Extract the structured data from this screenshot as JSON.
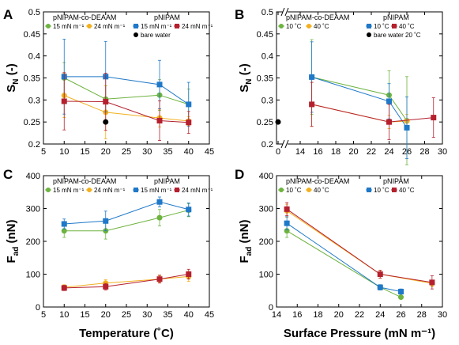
{
  "colors": {
    "co_15": "#6db33f",
    "co_24": "#f2b01e",
    "p_15": "#1f78c8",
    "p_24": "#b5202e",
    "bare": "#000000",
    "line": "#000000"
  },
  "chart_data": [
    {
      "panel": "A",
      "type": "line",
      "ylabel_main": "S",
      "ylabel_sub": "N",
      "ylabel_tail": " (-)",
      "xlim": [
        5,
        45
      ],
      "ylim": [
        0.2,
        0.5
      ],
      "xticks": [
        "5",
        "10",
        "15",
        "20",
        "25",
        "30",
        "35",
        "40",
        "45"
      ],
      "yticks": [
        "0.2",
        "0.25",
        "0.3",
        "0.35",
        "0.4",
        "0.45",
        "0.5"
      ],
      "legend": {
        "group_titles": [
          "pNIPAM-co-DEAAM",
          "pNIPAM"
        ],
        "entries": [
          "15 mN m⁻¹",
          "24 mN m⁻¹",
          "15 mN m⁻¹",
          "24 mN m⁻¹"
        ],
        "bare": "bare water"
      },
      "series": [
        {
          "key": "co_15",
          "marker": "circle",
          "x": [
            10,
            20,
            33,
            40
          ],
          "y": [
            0.35,
            0.302,
            0.311,
            0.29
          ],
          "err": [
            0.035,
            0.03,
            0.035,
            0.035
          ]
        },
        {
          "key": "co_24",
          "marker": "circle",
          "x": [
            10,
            20,
            33,
            40
          ],
          "y": [
            0.31,
            0.272,
            0.259,
            0.252
          ],
          "err": [
            0.05,
            0.06,
            0.02,
            0.01
          ]
        },
        {
          "key": "p_15",
          "marker": "square",
          "x": [
            10,
            20,
            33,
            40
          ],
          "y": [
            0.353,
            0.353,
            0.335,
            0.29
          ],
          "err": [
            0.085,
            0.08,
            0.055,
            0.05
          ]
        },
        {
          "key": "p_24",
          "marker": "square",
          "x": [
            10,
            20,
            33,
            40
          ],
          "y": [
            0.297,
            0.296,
            0.253,
            0.249
          ],
          "err": [
            0.065,
            0.065,
            0.045,
            0.025
          ]
        },
        {
          "key": "bare",
          "marker": "circle",
          "x": [
            20
          ],
          "y": [
            0.25
          ],
          "err": [
            0
          ],
          "noline": true
        }
      ]
    },
    {
      "panel": "B",
      "type": "line",
      "ylabel_main": "S",
      "ylabel_sub": "N",
      "ylabel_tail": " (-)",
      "xlim": [
        0,
        30
      ],
      "ylim": [
        0.2,
        0.5
      ],
      "axis_break": true,
      "xticks_at": [
        0,
        14,
        16,
        18,
        20,
        22,
        24,
        26,
        28,
        30
      ],
      "xticks": [
        "0",
        "14",
        "16",
        "18",
        "20",
        "22",
        "24",
        "26",
        "28",
        "30"
      ],
      "yticks": [
        "0.2",
        "0.25",
        "0.3",
        "0.35",
        "0.4",
        "0.45",
        "0.5"
      ],
      "legend": {
        "group_titles": [
          "pNIPAM-co-DEAAM",
          "pNIPAM"
        ],
        "entries": [
          "10 ˚C",
          "40 ˚C",
          "10 ˚C",
          "40 ˚C"
        ],
        "bare": "bare water 20 ˚C"
      },
      "series": [
        {
          "key": "co_15",
          "marker": "circle",
          "x": [
            15.3,
            24,
            26
          ],
          "y": [
            0.352,
            0.311,
            0.253
          ],
          "err": [
            0.085,
            0.055,
            0.1
          ]
        },
        {
          "key": "co_24",
          "marker": "circle",
          "x": [
            15.3,
            24,
            26
          ],
          "y": [
            0.29,
            0.25,
            0.252
          ],
          "err": [
            0.05,
            0.015,
            0.015
          ]
        },
        {
          "key": "p_15",
          "marker": "square",
          "x": [
            15.3,
            24,
            26
          ],
          "y": [
            0.352,
            0.297,
            0.237
          ],
          "err": [
            0.08,
            0.04,
            0.07
          ]
        },
        {
          "key": "p_24",
          "marker": "square",
          "x": [
            15.3,
            24,
            29
          ],
          "y": [
            0.29,
            0.25,
            0.26
          ],
          "err": [
            0.05,
            0.04,
            0.045
          ]
        },
        {
          "key": "bare",
          "marker": "circle",
          "x": [
            0.1
          ],
          "y": [
            0.25
          ],
          "err": [
            0
          ],
          "noline": true
        }
      ]
    },
    {
      "panel": "C",
      "type": "line",
      "ylabel_main": "F",
      "ylabel_sub": "ad",
      "ylabel_tail": " (nN)",
      "xlabel": "Temperature (˚C)",
      "xlim": [
        5,
        45
      ],
      "ylim": [
        0,
        400
      ],
      "xticks": [
        "5",
        "10",
        "15",
        "20",
        "25",
        "30",
        "35",
        "40",
        "45"
      ],
      "yticks": [
        "0",
        "100",
        "200",
        "300",
        "400"
      ],
      "legend": {
        "group_titles": [
          "pNIPAM-co-DEAAM",
          "pNIPAM"
        ],
        "entries": [
          "15 mN m⁻¹",
          "24 mN m⁻¹",
          "15 mN m⁻¹",
          "24 mN m⁻¹"
        ]
      },
      "series": [
        {
          "key": "co_15",
          "marker": "circle",
          "x": [
            10,
            20,
            33,
            40
          ],
          "y": [
            232,
            232,
            272,
            295
          ],
          "err": [
            20,
            25,
            25,
            20
          ]
        },
        {
          "key": "co_24",
          "marker": "circle",
          "x": [
            10,
            20,
            33,
            40
          ],
          "y": [
            60,
            73,
            85,
            93
          ],
          "err": [
            8,
            10,
            10,
            15
          ]
        },
        {
          "key": "p_15",
          "marker": "square",
          "x": [
            10,
            20,
            33,
            40
          ],
          "y": [
            253,
            262,
            320,
            297
          ],
          "err": [
            15,
            30,
            15,
            20
          ]
        },
        {
          "key": "p_24",
          "marker": "square",
          "x": [
            10,
            20,
            33,
            40
          ],
          "y": [
            58,
            62,
            85,
            100
          ],
          "err": [
            8,
            10,
            12,
            15
          ]
        }
      ]
    },
    {
      "panel": "D",
      "type": "line",
      "ylabel_main": "F",
      "ylabel_sub": "ad",
      "ylabel_tail": " (nN)",
      "xlabel": "Surface Pressure (mN m⁻¹)",
      "xlim": [
        14,
        30
      ],
      "ylim": [
        0,
        400
      ],
      "xticks": [
        "14",
        "16",
        "18",
        "20",
        "22",
        "24",
        "26",
        "28",
        "30"
      ],
      "yticks": [
        "0",
        "100",
        "200",
        "300",
        "400"
      ],
      "legend": {
        "group_titles": [
          "pNIPAM-co-DEAAM",
          "pNIPAM"
        ],
        "entries": [
          "10 ˚C",
          "40 ˚C",
          "10 ˚C",
          "40 ˚C"
        ]
      },
      "series": [
        {
          "key": "co_15",
          "marker": "circle",
          "x": [
            15,
            24,
            26
          ],
          "y": [
            232,
            60,
            30
          ],
          "err": [
            20,
            8,
            5
          ]
        },
        {
          "key": "co_24",
          "marker": "circle",
          "x": [
            15,
            24,
            29
          ],
          "y": [
            293,
            100,
            72
          ],
          "err": [
            20,
            12,
            10
          ]
        },
        {
          "key": "p_15",
          "marker": "square",
          "x": [
            15,
            24,
            26
          ],
          "y": [
            255,
            60,
            47
          ],
          "err": [
            20,
            8,
            8
          ]
        },
        {
          "key": "p_24",
          "marker": "square",
          "x": [
            15,
            24,
            29
          ],
          "y": [
            298,
            100,
            75
          ],
          "err": [
            20,
            12,
            20
          ]
        }
      ]
    }
  ]
}
